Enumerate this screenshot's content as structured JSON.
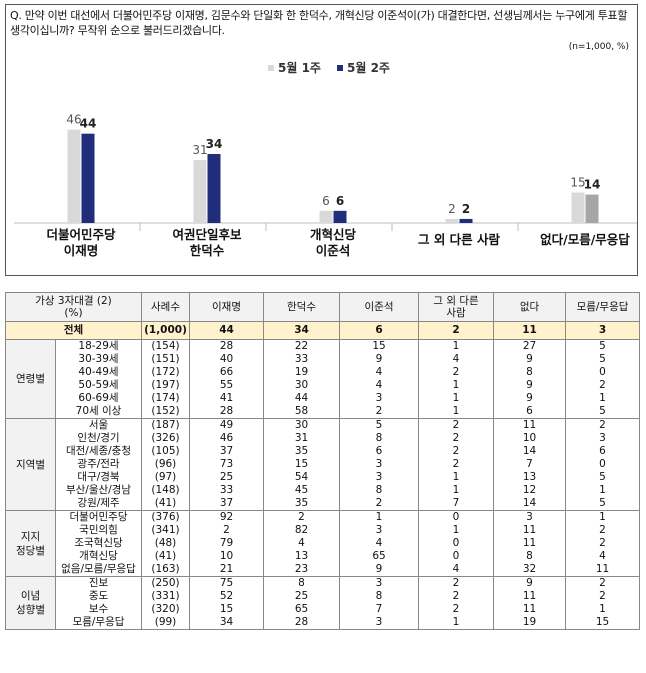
{
  "question": "Q. 만약 이번 대선에서 더불어민주당 이재명, 김문수와 단일화 한 한덕수, 개혁신당 이준석이(가) 대결한다면, 선생님께서는 누구에게 투표할 생각이십니까? 무작위 순으로 불러드리겠습니다.",
  "unit_note": "(n=1,000, %)",
  "colors": {
    "week1": "#d9d9d9",
    "week2": "#1f2d7b",
    "week1_last": "#d9d9d9",
    "week2_last": "#a6a6a6",
    "total_row": "#fff2cc",
    "header": "#f2f2f2"
  },
  "chart_data": {
    "type": "bar",
    "categories": [
      "더불어민주당\n이재명",
      "여권단일후보\n한덕수",
      "개혁신당\n이준석",
      "그 외 다른 사람",
      "없다/모름/무응답"
    ],
    "series": [
      {
        "name": "5월 1주",
        "values": [
          46,
          31,
          6,
          2,
          15
        ]
      },
      {
        "name": "5월 2주",
        "values": [
          44,
          34,
          6,
          2,
          14
        ]
      }
    ],
    "legend": "top-center",
    "ylim": [
      0,
      55
    ]
  },
  "table": {
    "headers": [
      "가상 3자대결 (2)\n(%)",
      "",
      "사례수",
      "이재명",
      "한덕수",
      "이준석",
      "그 외 다른\n사람",
      "없다",
      "모름/무응답"
    ],
    "total": {
      "label": "전체",
      "n": "(1,000)",
      "values": [
        "44",
        "34",
        "6",
        "2",
        "11",
        "3"
      ]
    },
    "groups": [
      {
        "name": "연령별",
        "rows": [
          {
            "label": "18-29세",
            "n": "(154)",
            "values": [
              "28",
              "22",
              "15",
              "1",
              "27",
              "5"
            ]
          },
          {
            "label": "30-39세",
            "n": "(151)",
            "values": [
              "40",
              "33",
              "9",
              "4",
              "9",
              "5"
            ]
          },
          {
            "label": "40-49세",
            "n": "(172)",
            "values": [
              "66",
              "19",
              "4",
              "2",
              "8",
              "0"
            ]
          },
          {
            "label": "50-59세",
            "n": "(197)",
            "values": [
              "55",
              "30",
              "4",
              "1",
              "9",
              "2"
            ]
          },
          {
            "label": "60-69세",
            "n": "(174)",
            "values": [
              "41",
              "44",
              "3",
              "1",
              "9",
              "1"
            ]
          },
          {
            "label": "70세 이상",
            "n": "(152)",
            "values": [
              "28",
              "58",
              "2",
              "1",
              "6",
              "5"
            ]
          }
        ]
      },
      {
        "name": "지역별",
        "rows": [
          {
            "label": "서울",
            "n": "(187)",
            "values": [
              "49",
              "30",
              "5",
              "2",
              "11",
              "2"
            ]
          },
          {
            "label": "인천/경기",
            "n": "(326)",
            "values": [
              "46",
              "31",
              "8",
              "2",
              "10",
              "3"
            ]
          },
          {
            "label": "대전/세종/충청",
            "n": "(105)",
            "values": [
              "37",
              "35",
              "6",
              "2",
              "14",
              "6"
            ]
          },
          {
            "label": "광주/전라",
            "n": "(96)",
            "values": [
              "73",
              "15",
              "3",
              "2",
              "7",
              "0"
            ]
          },
          {
            "label": "대구/경북",
            "n": "(97)",
            "values": [
              "25",
              "54",
              "3",
              "1",
              "13",
              "5"
            ]
          },
          {
            "label": "부산/울산/경남",
            "n": "(148)",
            "values": [
              "33",
              "45",
              "8",
              "1",
              "12",
              "1"
            ]
          },
          {
            "label": "강원/제주",
            "n": "(41)",
            "values": [
              "37",
              "35",
              "2",
              "7",
              "14",
              "5"
            ]
          }
        ]
      },
      {
        "name": "지지\n정당별",
        "rows": [
          {
            "label": "더불어민주당",
            "n": "(376)",
            "values": [
              "92",
              "2",
              "1",
              "0",
              "3",
              "1"
            ]
          },
          {
            "label": "국민의힘",
            "n": "(341)",
            "values": [
              "2",
              "82",
              "3",
              "1",
              "11",
              "2"
            ]
          },
          {
            "label": "조국혁신당",
            "n": "(48)",
            "values": [
              "79",
              "4",
              "4",
              "0",
              "11",
              "2"
            ]
          },
          {
            "label": "개혁신당",
            "n": "(41)",
            "values": [
              "10",
              "13",
              "65",
              "0",
              "8",
              "4"
            ]
          },
          {
            "label": "없음/모름/무응답",
            "n": "(163)",
            "values": [
              "21",
              "23",
              "9",
              "4",
              "32",
              "11"
            ]
          }
        ]
      },
      {
        "name": "이념\n성향별",
        "rows": [
          {
            "label": "진보",
            "n": "(250)",
            "values": [
              "75",
              "8",
              "3",
              "2",
              "9",
              "2"
            ]
          },
          {
            "label": "중도",
            "n": "(331)",
            "values": [
              "52",
              "25",
              "8",
              "2",
              "11",
              "2"
            ]
          },
          {
            "label": "보수",
            "n": "(320)",
            "values": [
              "15",
              "65",
              "7",
              "2",
              "11",
              "1"
            ]
          },
          {
            "label": "모름/무응답",
            "n": "(99)",
            "values": [
              "34",
              "28",
              "3",
              "1",
              "19",
              "15"
            ]
          }
        ]
      }
    ]
  }
}
